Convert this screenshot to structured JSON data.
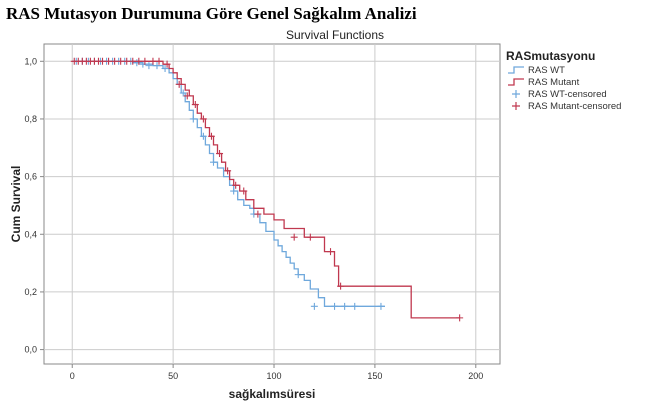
{
  "page_title": "RAS Mutasyon Durumuna Göre Genel Sağkalım Analizi",
  "chart_data": {
    "type": "line",
    "title": "Survival Functions",
    "xlabel": "sağkalımsüresi",
    "ylabel": "Cum Survival",
    "xlim": [
      -14,
      212
    ],
    "ylim": [
      -0.05,
      1.06
    ],
    "xticks": [
      0,
      50,
      100,
      150,
      200
    ],
    "xtick_labels": [
      "0",
      "50",
      "100",
      "150",
      "200"
    ],
    "yticks": [
      0.0,
      0.2,
      0.4,
      0.6,
      0.8,
      1.0
    ],
    "ytick_labels": [
      "0,0",
      "0,2",
      "0,4",
      "0,6",
      "0,8",
      "1,0"
    ],
    "grid": true,
    "legend_position": "right",
    "legend_title": "RASmutasyonu",
    "legend_entries": [
      "RAS WT",
      "RAS Mutant",
      "RAS WT-censored",
      "RAS Mutant-censored"
    ],
    "colors": {
      "wt": "#6fa8dc",
      "mutant": "#c0384f",
      "grid": "#cccccc",
      "frame": "#888888"
    },
    "series": [
      {
        "name": "RAS WT",
        "step": true,
        "x": [
          0,
          30,
          35,
          40,
          45,
          48,
          50,
          52,
          54,
          56,
          58,
          60,
          62,
          64,
          66,
          68,
          70,
          72,
          75,
          78,
          80,
          82,
          85,
          88,
          90,
          93,
          96,
          100,
          102,
          104,
          106,
          108,
          110,
          112,
          115,
          118,
          122,
          125,
          155
        ],
        "y": [
          1.0,
          0.995,
          0.99,
          0.985,
          0.975,
          0.96,
          0.94,
          0.92,
          0.89,
          0.86,
          0.83,
          0.8,
          0.77,
          0.74,
          0.71,
          0.68,
          0.65,
          0.63,
          0.6,
          0.57,
          0.55,
          0.52,
          0.5,
          0.49,
          0.47,
          0.44,
          0.41,
          0.38,
          0.36,
          0.34,
          0.32,
          0.3,
          0.28,
          0.26,
          0.24,
          0.21,
          0.18,
          0.15,
          0.15
        ]
      },
      {
        "name": "RAS Mutant",
        "step": true,
        "x": [
          0,
          45,
          48,
          50,
          52,
          54,
          56,
          58,
          60,
          62,
          64,
          66,
          68,
          70,
          72,
          74,
          76,
          78,
          80,
          83,
          86,
          90,
          95,
          100,
          105,
          115,
          125,
          130,
          132,
          168,
          192
        ],
        "y": [
          1.0,
          0.99,
          0.975,
          0.96,
          0.94,
          0.92,
          0.9,
          0.88,
          0.85,
          0.82,
          0.8,
          0.77,
          0.74,
          0.71,
          0.68,
          0.65,
          0.62,
          0.59,
          0.57,
          0.55,
          0.52,
          0.49,
          0.47,
          0.45,
          0.42,
          0.39,
          0.34,
          0.29,
          0.22,
          0.11,
          0.11
        ]
      }
    ],
    "censored": [
      {
        "name": "RAS WT-censored",
        "x": [
          2,
          5,
          8,
          11,
          14,
          17,
          20,
          23,
          26,
          29,
          32,
          35,
          38,
          42,
          46,
          55,
          60,
          65,
          70,
          80,
          90,
          112,
          120,
          130,
          135,
          140,
          153
        ],
        "y": [
          1.0,
          1.0,
          1.0,
          1.0,
          1.0,
          1.0,
          1.0,
          1.0,
          1.0,
          1.0,
          0.995,
          0.99,
          0.985,
          0.985,
          0.975,
          0.89,
          0.8,
          0.74,
          0.65,
          0.55,
          0.47,
          0.26,
          0.15,
          0.15,
          0.15,
          0.15,
          0.15
        ]
      },
      {
        "name": "RAS Mutant-censored",
        "x": [
          1,
          3,
          5,
          7,
          9,
          11,
          13,
          15,
          18,
          21,
          24,
          27,
          30,
          33,
          36,
          40,
          43,
          47,
          53,
          57,
          61,
          65,
          69,
          73,
          77,
          81,
          85,
          92,
          110,
          118,
          128,
          133,
          192
        ],
        "y": [
          1.0,
          1.0,
          1.0,
          1.0,
          1.0,
          1.0,
          1.0,
          1.0,
          1.0,
          1.0,
          1.0,
          1.0,
          1.0,
          1.0,
          1.0,
          1.0,
          1.0,
          0.99,
          0.92,
          0.88,
          0.85,
          0.8,
          0.74,
          0.68,
          0.62,
          0.57,
          0.55,
          0.47,
          0.39,
          0.39,
          0.34,
          0.22,
          0.11
        ]
      }
    ]
  }
}
